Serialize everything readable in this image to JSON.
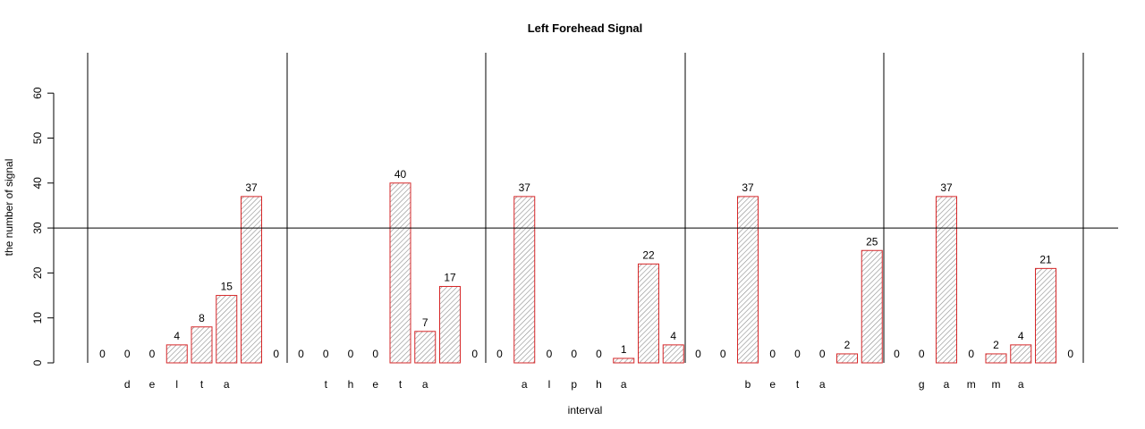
{
  "chart_data": {
    "type": "bar",
    "title": "Left Forehead Signal",
    "xlabel": "interval",
    "ylabel": "the number of signal",
    "ylim": [
      0,
      70
    ],
    "yticks": [
      0,
      10,
      20,
      30,
      40,
      50,
      60
    ],
    "reference_line_y": 30,
    "grid": false,
    "bar_outline_color": "#d62728",
    "bar_fill_color": "#bfbfbf",
    "values": [
      0,
      0,
      0,
      4,
      8,
      15,
      37,
      0,
      0,
      0,
      0,
      0,
      40,
      7,
      17,
      0,
      0,
      37,
      0,
      0,
      0,
      1,
      22,
      4,
      0,
      0,
      37,
      0,
      0,
      0,
      2,
      25,
      0,
      0,
      37,
      0,
      2,
      4,
      21,
      0
    ],
    "categories": [
      "",
      "d",
      "e",
      "l",
      "t",
      "a",
      "",
      "",
      "",
      "t",
      "h",
      "e",
      "t",
      "a",
      "",
      "",
      "",
      "a",
      "l",
      "p",
      "h",
      "a",
      "",
      "",
      "",
      "",
      "b",
      "e",
      "t",
      "a",
      "",
      "",
      "",
      "g",
      "a",
      "m",
      "m",
      "a",
      "",
      ""
    ],
    "groups": [
      "delta",
      "theta",
      "alpha",
      "beta",
      "gamma"
    ]
  }
}
